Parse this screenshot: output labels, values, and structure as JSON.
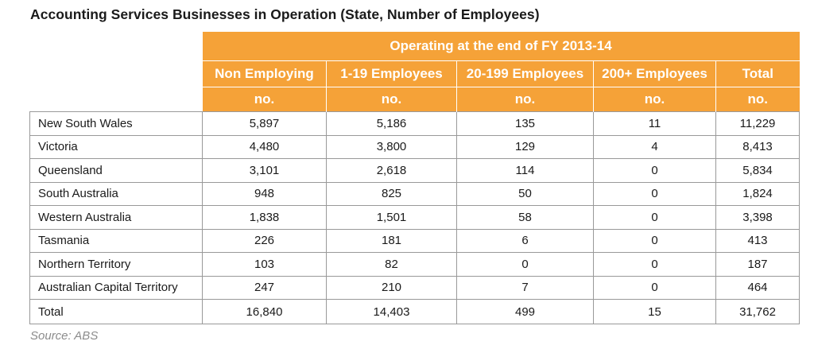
{
  "title": "Accounting Services Businesses in Operation (State, Number of Employees)",
  "table": {
    "group_header": "Operating at the end of FY 2013-14",
    "columns": [
      "Non Employing",
      "1-19 Employees",
      "20-199 Employees",
      "200+ Employees",
      "Total"
    ],
    "unit": "no.",
    "rows": [
      {
        "state": "New South Wales",
        "values": [
          "5,897",
          "5,186",
          "135",
          "11",
          "11,229"
        ]
      },
      {
        "state": "Victoria",
        "values": [
          "4,480",
          "3,800",
          "129",
          "4",
          "8,413"
        ]
      },
      {
        "state": "Queensland",
        "values": [
          "3,101",
          "2,618",
          "114",
          "0",
          "5,834"
        ]
      },
      {
        "state": "South Australia",
        "values": [
          "948",
          "825",
          "50",
          "0",
          "1,824"
        ]
      },
      {
        "state": "Western Australia",
        "values": [
          "1,838",
          "1,501",
          "58",
          "0",
          "3,398"
        ]
      },
      {
        "state": "Tasmania",
        "values": [
          "226",
          "181",
          "6",
          "0",
          "413"
        ]
      },
      {
        "state": "Northern Territory",
        "values": [
          "103",
          "82",
          "0",
          "0",
          "187"
        ]
      },
      {
        "state": "Australian Capital Territory",
        "values": [
          "247",
          "210",
          "7",
          "0",
          "464"
        ]
      },
      {
        "state": "Total",
        "values": [
          "16,840",
          "14,403",
          "499",
          "15",
          "31,762"
        ]
      }
    ]
  },
  "source": "Source: ABS",
  "colors": {
    "header_bg": "#f5a238",
    "header_text": "#ffffff",
    "border": "#999999",
    "source_text": "#8c8c8c"
  }
}
